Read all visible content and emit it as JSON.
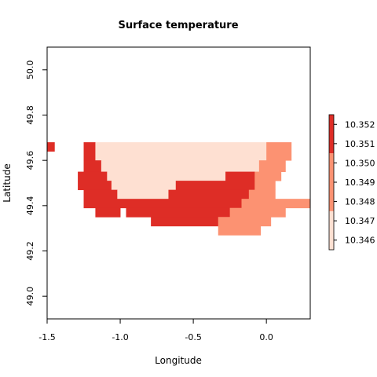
{
  "chart_data": {
    "type": "heatmap",
    "title": "Surface temperature",
    "xlabel": "Longitude",
    "ylabel": "Latitude",
    "xlim": [
      -1.5,
      0.3
    ],
    "ylim": [
      48.9,
      50.1
    ],
    "x_ticks": [
      -1.5,
      -1.0,
      -0.5,
      0.0
    ],
    "x_tick_labels": [
      "-1.5",
      "-1.0",
      "-0.5",
      "0.0"
    ],
    "y_ticks": [
      49.0,
      49.2,
      49.4,
      49.6,
      49.8,
      50.0
    ],
    "y_tick_labels": [
      "49.0",
      "49.2",
      "49.4",
      "49.6",
      "49.8",
      "50.0"
    ],
    "grid": false,
    "legend_position": "right",
    "colors": {
      "class_1": "#fee0d2",
      "class_2": "#fc9272",
      "class_3": "#de2d26"
    },
    "legend": {
      "tick_values": [
        10.346,
        10.347,
        10.348,
        10.349,
        10.35,
        10.351,
        10.352
      ],
      "tick_labels": [
        "10.346",
        "10.347",
        "10.348",
        "10.349",
        "10.350",
        "10.351",
        "10.352"
      ],
      "value_range": [
        10.3455,
        10.3525
      ],
      "classes": [
        {
          "from": 10.3455,
          "to": 10.3475,
          "color": "#fee0d2"
        },
        {
          "from": 10.3475,
          "to": 10.3505,
          "color": "#fc9272"
        },
        {
          "from": 10.3505,
          "to": 10.3525,
          "color": "#de2d26"
        }
      ]
    },
    "cells": [
      {
        "x0": -1.5,
        "x1": -1.45,
        "y0": 49.64,
        "y1": 49.68,
        "class": 3
      },
      {
        "x0": -1.25,
        "x1": -1.17,
        "y0": 49.6,
        "y1": 49.68,
        "class": 3
      },
      {
        "x0": -1.17,
        "x1": 0.0,
        "y0": 49.6,
        "y1": 49.68,
        "class": 1
      },
      {
        "x0": 0.0,
        "x1": 0.17,
        "y0": 49.6,
        "y1": 49.68,
        "class": 2
      },
      {
        "x0": -1.25,
        "x1": -1.13,
        "y0": 49.55,
        "y1": 49.6,
        "class": 3
      },
      {
        "x0": -1.13,
        "x1": -0.05,
        "y0": 49.55,
        "y1": 49.6,
        "class": 1
      },
      {
        "x0": -0.05,
        "x1": 0.13,
        "y0": 49.55,
        "y1": 49.6,
        "class": 2
      },
      {
        "x0": -1.29,
        "x1": -1.09,
        "y0": 49.51,
        "y1": 49.55,
        "class": 3
      },
      {
        "x0": -1.09,
        "x1": -0.28,
        "y0": 49.51,
        "y1": 49.55,
        "class": 1
      },
      {
        "x0": -0.28,
        "x1": -0.08,
        "y0": 49.51,
        "y1": 49.55,
        "class": 3
      },
      {
        "x0": -0.08,
        "x1": 0.1,
        "y0": 49.51,
        "y1": 49.55,
        "class": 2
      },
      {
        "x0": -1.29,
        "x1": -1.06,
        "y0": 49.47,
        "y1": 49.51,
        "class": 3
      },
      {
        "x0": -1.06,
        "x1": -0.62,
        "y0": 49.47,
        "y1": 49.51,
        "class": 1
      },
      {
        "x0": -0.62,
        "x1": -0.08,
        "y0": 49.47,
        "y1": 49.51,
        "class": 3
      },
      {
        "x0": -0.08,
        "x1": 0.06,
        "y0": 49.47,
        "y1": 49.51,
        "class": 2
      },
      {
        "x0": -1.25,
        "x1": -1.02,
        "y0": 49.43,
        "y1": 49.47,
        "class": 3
      },
      {
        "x0": -1.02,
        "x1": -0.67,
        "y0": 49.43,
        "y1": 49.47,
        "class": 1
      },
      {
        "x0": -0.67,
        "x1": -0.12,
        "y0": 49.43,
        "y1": 49.47,
        "class": 3
      },
      {
        "x0": -0.12,
        "x1": 0.06,
        "y0": 49.43,
        "y1": 49.47,
        "class": 2
      },
      {
        "x0": -1.25,
        "x1": -0.17,
        "y0": 49.39,
        "y1": 49.43,
        "class": 3
      },
      {
        "x0": -0.17,
        "x1": 0.3,
        "y0": 49.39,
        "y1": 49.43,
        "class": 2
      },
      {
        "x0": -1.17,
        "x1": -1.0,
        "y0": 49.35,
        "y1": 49.39,
        "class": 3
      },
      {
        "x0": -0.96,
        "x1": -0.25,
        "y0": 49.35,
        "y1": 49.39,
        "class": 3
      },
      {
        "x0": -0.25,
        "x1": 0.13,
        "y0": 49.35,
        "y1": 49.39,
        "class": 2
      },
      {
        "x0": -0.79,
        "x1": -0.33,
        "y0": 49.31,
        "y1": 49.35,
        "class": 3
      },
      {
        "x0": -0.33,
        "x1": 0.03,
        "y0": 49.31,
        "y1": 49.35,
        "class": 2
      },
      {
        "x0": -0.33,
        "x1": -0.04,
        "y0": 49.27,
        "y1": 49.31,
        "class": 2
      }
    ]
  }
}
